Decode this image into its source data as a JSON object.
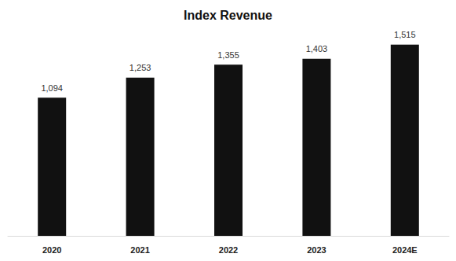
{
  "chart_data": {
    "type": "bar",
    "title": "Index Revenue",
    "categories": [
      "2020",
      "2021",
      "2022",
      "2023",
      "2024E"
    ],
    "values": [
      1094,
      1253,
      1355,
      1403,
      1515
    ],
    "value_labels": [
      "1,094",
      "1,253",
      "1,355",
      "1,403",
      "1,515"
    ],
    "color": "#111111",
    "ylim": [
      0,
      1600
    ],
    "grid": false,
    "data_labels": true,
    "tick_labels": "x"
  }
}
